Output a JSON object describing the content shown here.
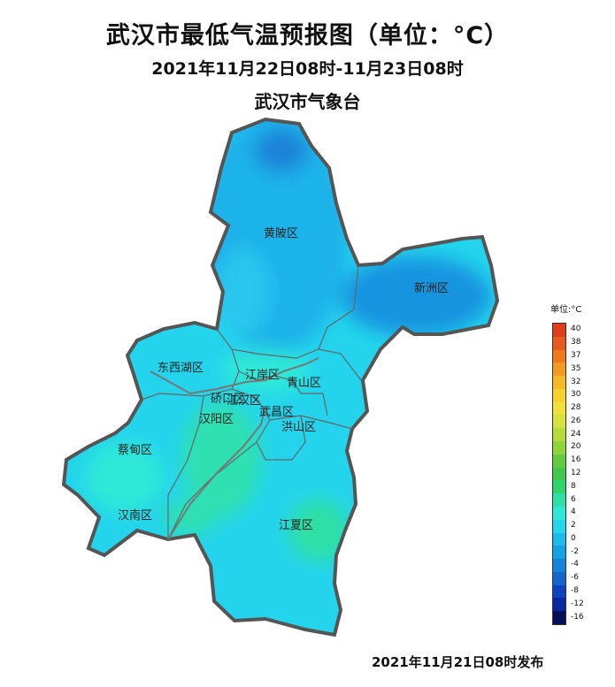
{
  "header": {
    "title": "武汉市最低气温预报图（单位：°C）",
    "period": "2021年11月22日08时-11月23日08时",
    "agency": "武汉市气象台"
  },
  "footer": {
    "issued": "2021年11月21日08时发布"
  },
  "map": {
    "districts": [
      {
        "name": "黄陂区"
      },
      {
        "name": "新洲区"
      },
      {
        "name": "东西湖区"
      },
      {
        "name": "江岸区"
      },
      {
        "name": "青山区"
      },
      {
        "name": "硚口区"
      },
      {
        "name": "江汉区"
      },
      {
        "name": "汉阳区"
      },
      {
        "name": "武昌区"
      },
      {
        "name": "洪山区"
      },
      {
        "name": "蔡甸区"
      },
      {
        "name": "汉南区"
      },
      {
        "name": "江夏区"
      }
    ]
  },
  "legend": {
    "unit_label": "单位:°C",
    "labels": [
      "40",
      "38",
      "37",
      "35",
      "32",
      "30",
      "28",
      "26",
      "24",
      "20",
      "16",
      "12",
      "8",
      "6",
      "4",
      "2",
      "0",
      "-2",
      "-4",
      "-6",
      "-8",
      "-12",
      "-16"
    ],
    "colors": [
      "#e03d1a",
      "#ea5a1c",
      "#ef7a1e",
      "#f29a22",
      "#f5b826",
      "#f6d12c",
      "#eee03a",
      "#d6e23c",
      "#b4dc3a",
      "#8ed43a",
      "#62cc3e",
      "#3ec84e",
      "#2ed46e",
      "#2ee0a6",
      "#2ee8d8",
      "#23d6ee",
      "#1cbcea",
      "#14a2e2",
      "#1484d8",
      "#1466cc",
      "#0f42c0",
      "#0a28a0",
      "#04105a"
    ]
  }
}
